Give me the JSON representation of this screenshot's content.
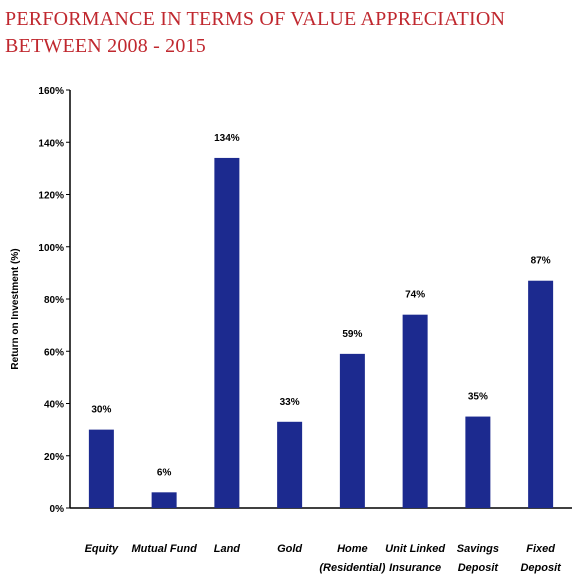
{
  "header": {
    "title_line1": "PERFORMANCE IN TERMS OF VALUE APPRECIATION",
    "title_line2": "BETWEEN 2008 - 2015"
  },
  "chart_data": {
    "type": "bar",
    "title": "PERFORMANCE IN TERMS OF VALUE APPRECIATION BETWEEN 2008 - 2015",
    "xlabel": "",
    "ylabel": "Return on Investment (%)",
    "categories": [
      [
        "Equity"
      ],
      [
        "Mutual Fund"
      ],
      [
        "Land"
      ],
      [
        "Gold"
      ],
      [
        "Home",
        "(Residential)"
      ],
      [
        "Unit Linked",
        "Insurance"
      ],
      [
        "Savings",
        "Deposit"
      ],
      [
        "Fixed",
        "Deposit"
      ]
    ],
    "values": [
      30,
      6,
      134,
      33,
      59,
      74,
      35,
      87
    ],
    "data_labels": [
      "30%",
      "6%",
      "134%",
      "33%",
      "59%",
      "74%",
      "35%",
      "87%"
    ],
    "ylim": [
      0,
      160
    ],
    "yticks": [
      0,
      20,
      40,
      60,
      80,
      100,
      120,
      140,
      160
    ],
    "ytick_labels": [
      "0%",
      "20%",
      "40%",
      "60%",
      "80%",
      "100%",
      "120%",
      "140%",
      "160%"
    ],
    "grid": false,
    "legend": "none",
    "bar_color": "#1c2a8f"
  }
}
